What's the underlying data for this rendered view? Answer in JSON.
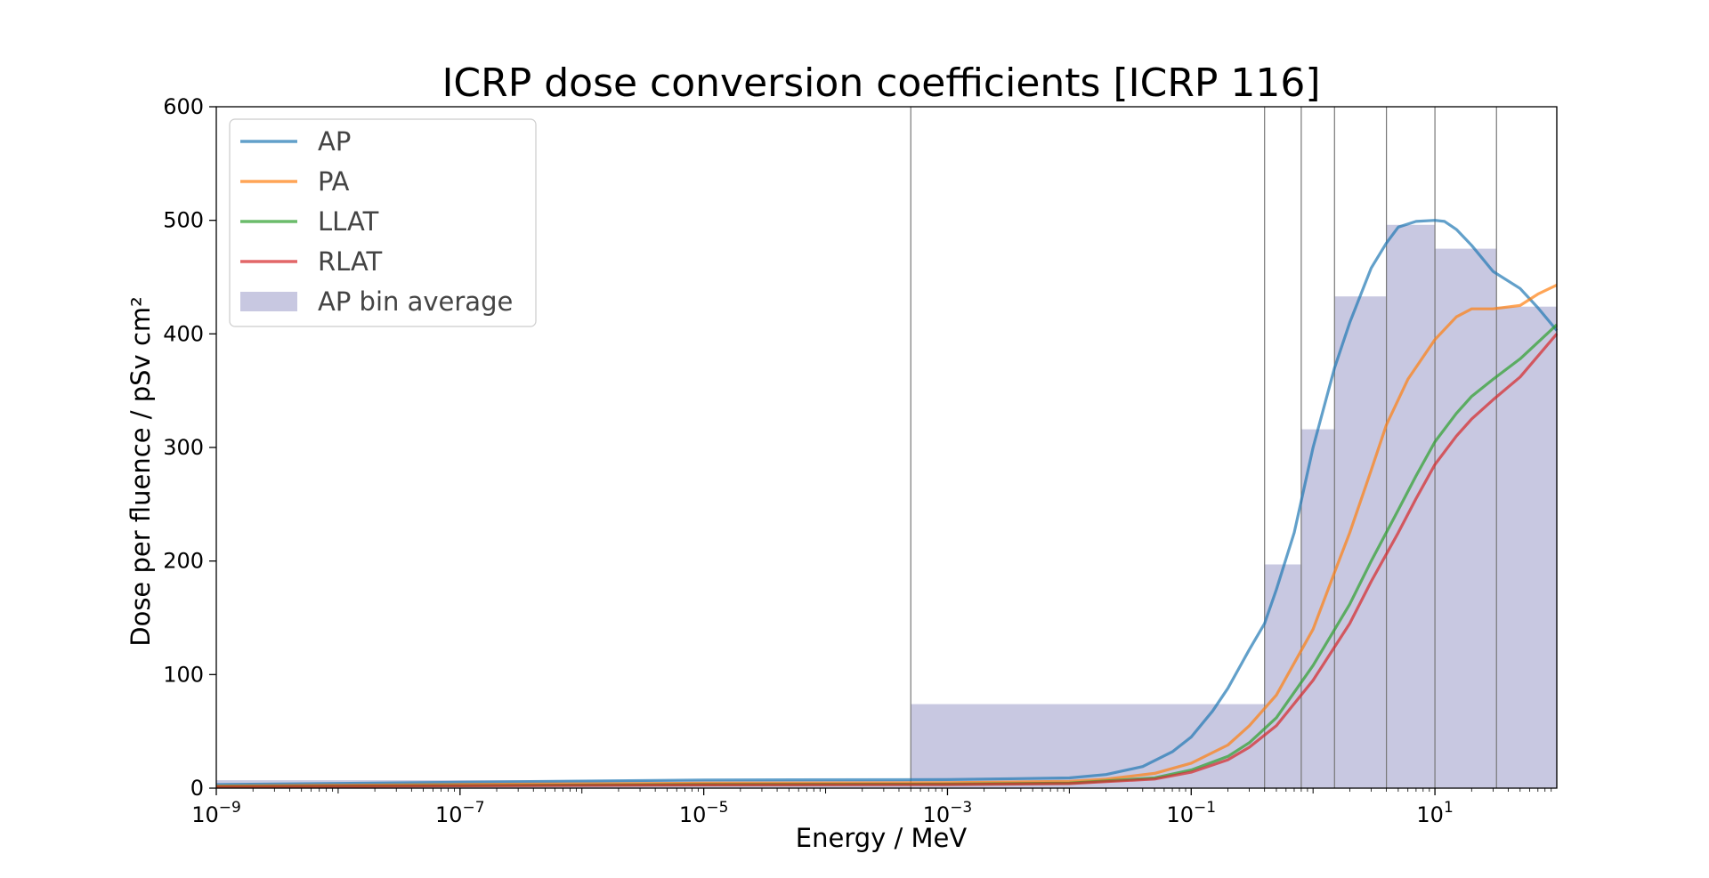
{
  "chart_data": {
    "type": "line",
    "title": "ICRP dose conversion coefficients [ICRP 116]",
    "xlabel": "Energy / MeV",
    "ylabel": "Dose per fluence / pSv cm²",
    "xscale": "log",
    "xlim": [
      1e-09,
      100
    ],
    "ylim": [
      0,
      600
    ],
    "x_ticks": [
      {
        "value": 1e-09,
        "base": "10",
        "exp": "−9"
      },
      {
        "value": 1e-07,
        "base": "10",
        "exp": "−7"
      },
      {
        "value": 1e-05,
        "base": "10",
        "exp": "−5"
      },
      {
        "value": 0.001,
        "base": "10",
        "exp": "−3"
      },
      {
        "value": 0.1,
        "base": "10",
        "exp": "−1"
      },
      {
        "value": 10,
        "base": "10",
        "exp": "1"
      }
    ],
    "y_ticks": [
      0,
      100,
      200,
      300,
      400,
      500,
      600
    ],
    "grid": false,
    "legend_position": "top-left",
    "bin_edges": [
      0.0005,
      0.4,
      0.8,
      1.5,
      4,
      10,
      32,
      100
    ],
    "series": [
      {
        "name": "AP",
        "color": "#1f77b4",
        "points": [
          [
            1e-09,
            3.1
          ],
          [
            1e-07,
            5.2
          ],
          [
            1e-05,
            7.2
          ],
          [
            0.001,
            7.5
          ],
          [
            0.01,
            9
          ],
          [
            0.02,
            12
          ],
          [
            0.04,
            19
          ],
          [
            0.07,
            32
          ],
          [
            0.1,
            45
          ],
          [
            0.15,
            68
          ],
          [
            0.2,
            88
          ],
          [
            0.3,
            122
          ],
          [
            0.4,
            145
          ],
          [
            0.5,
            175
          ],
          [
            0.7,
            225
          ],
          [
            1,
            300
          ],
          [
            1.5,
            370
          ],
          [
            2,
            410
          ],
          [
            3,
            458
          ],
          [
            4,
            480
          ],
          [
            5,
            494
          ],
          [
            7,
            499
          ],
          [
            10,
            500
          ],
          [
            12,
            499
          ],
          [
            15,
            492
          ],
          [
            20,
            478
          ],
          [
            30,
            455
          ],
          [
            50,
            440
          ],
          [
            70,
            423
          ],
          [
            100,
            403
          ]
        ]
      },
      {
        "name": "PA",
        "color": "#ff7f0e",
        "points": [
          [
            1e-09,
            1.8
          ],
          [
            1e-07,
            3.2
          ],
          [
            1e-05,
            4.4
          ],
          [
            0.001,
            4.8
          ],
          [
            0.01,
            6
          ],
          [
            0.02,
            8
          ],
          [
            0.05,
            13
          ],
          [
            0.1,
            22
          ],
          [
            0.2,
            38
          ],
          [
            0.3,
            55
          ],
          [
            0.5,
            82
          ],
          [
            1,
            140
          ],
          [
            1.5,
            190
          ],
          [
            2,
            225
          ],
          [
            3,
            280
          ],
          [
            4,
            320
          ],
          [
            6,
            360
          ],
          [
            10,
            395
          ],
          [
            15,
            415
          ],
          [
            20,
            422
          ],
          [
            30,
            422
          ],
          [
            50,
            425
          ],
          [
            70,
            435
          ],
          [
            100,
            443
          ]
        ]
      },
      {
        "name": "LLAT",
        "color": "#2ca02c",
        "points": [
          [
            1e-09,
            1.3
          ],
          [
            1e-07,
            2.3
          ],
          [
            1e-05,
            3.2
          ],
          [
            0.001,
            3.5
          ],
          [
            0.01,
            4.5
          ],
          [
            0.05,
            9
          ],
          [
            0.1,
            16
          ],
          [
            0.2,
            28
          ],
          [
            0.3,
            40
          ],
          [
            0.5,
            62
          ],
          [
            1,
            108
          ],
          [
            2,
            162
          ],
          [
            3,
            200
          ],
          [
            5,
            245
          ],
          [
            7,
            275
          ],
          [
            10,
            305
          ],
          [
            15,
            330
          ],
          [
            20,
            345
          ],
          [
            30,
            360
          ],
          [
            50,
            378
          ],
          [
            100,
            408
          ]
        ]
      },
      {
        "name": "RLAT",
        "color": "#d62728",
        "points": [
          [
            1e-09,
            1.1
          ],
          [
            1e-07,
            2.0
          ],
          [
            1e-05,
            2.8
          ],
          [
            0.001,
            3.1
          ],
          [
            0.01,
            4
          ],
          [
            0.05,
            8
          ],
          [
            0.1,
            14
          ],
          [
            0.2,
            25
          ],
          [
            0.3,
            36
          ],
          [
            0.5,
            55
          ],
          [
            1,
            95
          ],
          [
            2,
            145
          ],
          [
            3,
            182
          ],
          [
            5,
            225
          ],
          [
            7,
            255
          ],
          [
            10,
            285
          ],
          [
            15,
            310
          ],
          [
            20,
            325
          ],
          [
            30,
            342
          ],
          [
            50,
            362
          ],
          [
            100,
            400
          ]
        ]
      }
    ],
    "bins": {
      "name": "AP bin average",
      "color": "#b8b8d8",
      "items": [
        {
          "from": 1e-09,
          "to": 0.0005,
          "value": 7
        },
        {
          "from": 0.0005,
          "to": 0.4,
          "value": 74
        },
        {
          "from": 0.4,
          "to": 0.8,
          "value": 197
        },
        {
          "from": 0.8,
          "to": 1.5,
          "value": 316
        },
        {
          "from": 1.5,
          "to": 4,
          "value": 433
        },
        {
          "from": 4,
          "to": 10,
          "value": 496
        },
        {
          "from": 10,
          "to": 32,
          "value": 475
        },
        {
          "from": 32,
          "to": 100,
          "value": 424
        }
      ]
    }
  }
}
